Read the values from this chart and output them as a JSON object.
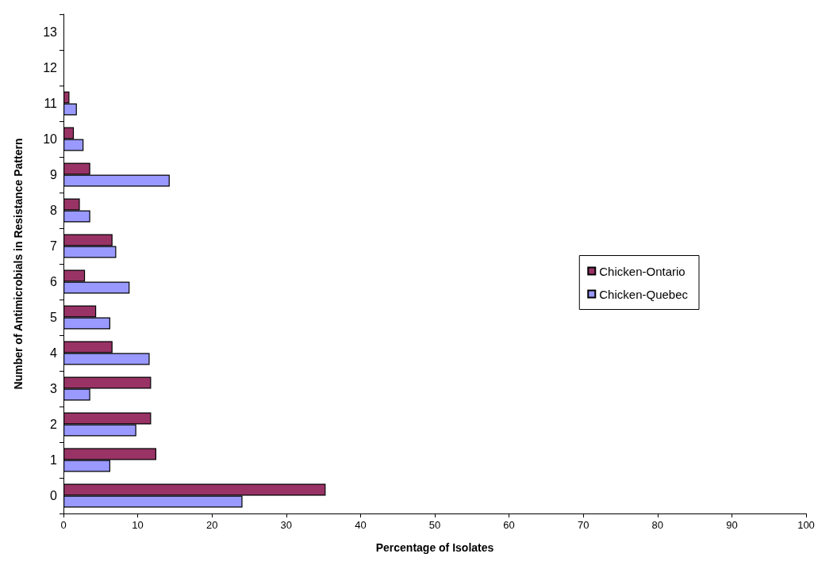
{
  "chart_data": {
    "type": "bar",
    "orientation": "horizontal",
    "xlabel": "Percentage of Isolates",
    "ylabel": "Number of Antimicrobials in Resistance Pattern",
    "categories": [
      "13",
      "12",
      "11",
      "10",
      "9",
      "8",
      "7",
      "6",
      "5",
      "4",
      "3",
      "2",
      "1",
      "0"
    ],
    "series": [
      {
        "name": "Chicken-Ontario",
        "color": "#993366",
        "values": [
          null,
          null,
          0.8,
          1.4,
          3.6,
          2.2,
          6.6,
          2.9,
          4.4,
          6.6,
          11.8,
          11.8,
          12.5,
          35.3
        ]
      },
      {
        "name": "Chicken-Quebec",
        "color": "#9999ff",
        "values": [
          null,
          null,
          1.8,
          2.7,
          14.3,
          3.6,
          7.1,
          8.9,
          6.3,
          11.6,
          3.6,
          9.8,
          6.3,
          24.1
        ]
      }
    ],
    "xlim": [
      0,
      100
    ],
    "xticks": [
      0,
      10,
      20,
      30,
      40,
      50,
      60,
      70,
      80,
      90,
      100
    ],
    "grid": false,
    "legend": "right"
  }
}
